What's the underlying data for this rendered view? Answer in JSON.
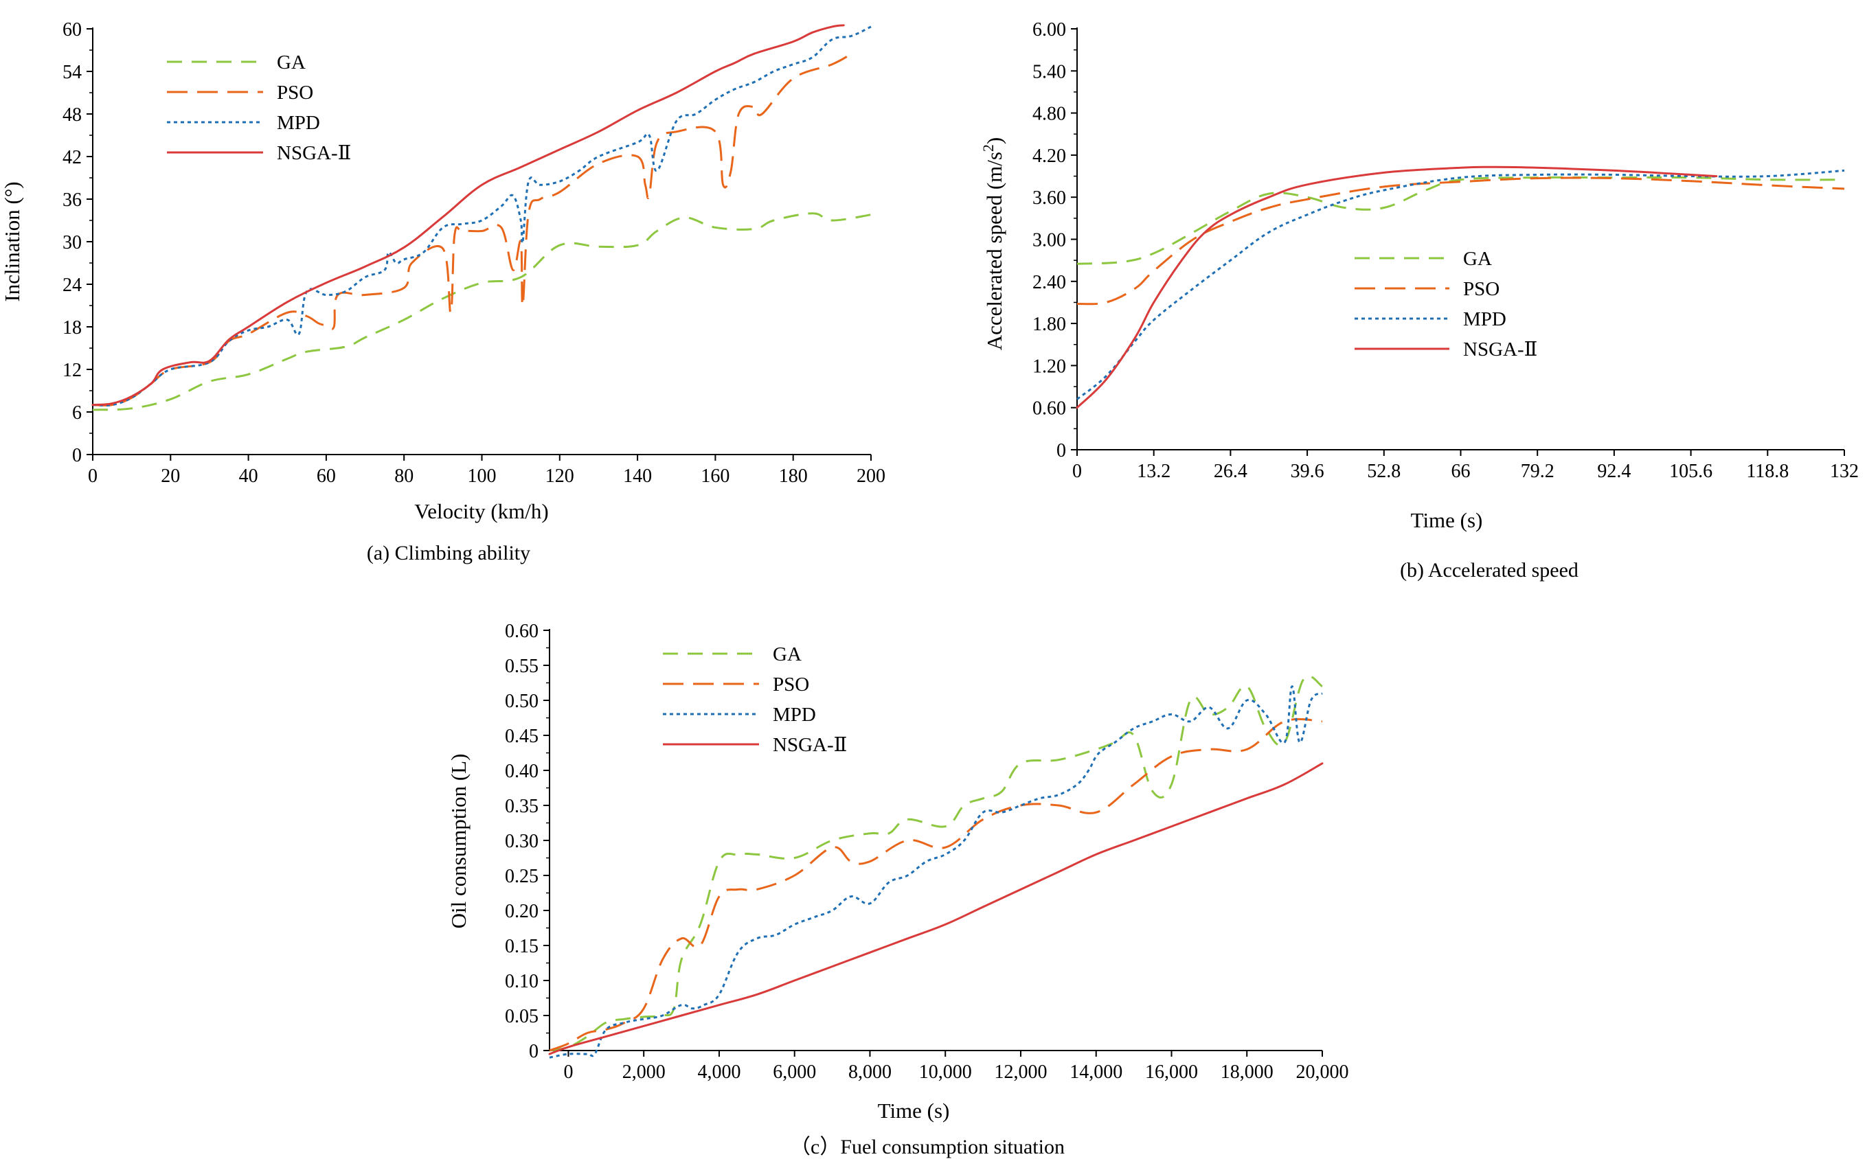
{
  "chart_data": [
    {
      "id": "a",
      "type": "line",
      "caption": "(a) Climbing ability",
      "xlabel": "Velocity (km/h)",
      "ylabel": "Inclination (°)",
      "xlim": [
        0,
        200
      ],
      "ylim": [
        0,
        60
      ],
      "xticks": [
        0,
        20,
        40,
        60,
        80,
        100,
        120,
        140,
        160,
        180,
        200
      ],
      "xtick_labels": [
        "0",
        "20",
        "40",
        "60",
        "80",
        "100",
        "120",
        "140",
        "160",
        "180",
        "200"
      ],
      "yticks": [
        0,
        6,
        12,
        18,
        24,
        30,
        36,
        42,
        48,
        54,
        60
      ],
      "ytick_labels": [
        "0",
        "6",
        "12",
        "18",
        "24",
        "30",
        "36",
        "42",
        "48",
        "54",
        "60"
      ],
      "legend_position": "top-left",
      "series": [
        {
          "name": "GA",
          "color": "#8dc63f",
          "dash": "dashed",
          "x": [
            0,
            10,
            20,
            30,
            40,
            50,
            55,
            65,
            70,
            80,
            90,
            100,
            110,
            120,
            130,
            140,
            145,
            152,
            160,
            170,
            175,
            185,
            190,
            200
          ],
          "y": [
            6.3,
            6.5,
            7.8,
            10.3,
            11.3,
            13.5,
            14.5,
            15.2,
            16.5,
            19,
            22,
            24.2,
            25,
            29.5,
            29.3,
            29.5,
            31.5,
            33.4,
            32,
            31.8,
            33,
            34,
            33,
            33.8
          ]
        },
        {
          "name": "PSO",
          "color": "#e8651a",
          "dash": "dashed-long",
          "x": [
            0,
            5,
            10,
            15,
            20,
            30,
            35,
            40,
            50,
            55,
            58,
            60,
            62,
            63,
            70,
            80,
            82,
            90,
            92,
            93,
            95,
            100,
            105,
            108,
            110,
            110.5,
            112,
            115,
            120,
            130,
            140,
            142,
            143,
            145,
            150,
            160,
            162,
            164,
            166,
            170,
            172,
            180,
            190,
            195
          ],
          "y": [
            7,
            7,
            8,
            10,
            12,
            13,
            16,
            17,
            20,
            19.5,
            18.5,
            18.2,
            18,
            22.5,
            22.5,
            23.5,
            27,
            29,
            20,
            31,
            31.5,
            31.5,
            32,
            26,
            30,
            21,
            34,
            36,
            37,
            41,
            42,
            38,
            36.5,
            44,
            45.5,
            45.5,
            38,
            40,
            48,
            49,
            48,
            53,
            55,
            56.5
          ]
        },
        {
          "name": "MPD",
          "color": "#1f6fb5",
          "dash": "dotted",
          "x": [
            0,
            5,
            10,
            15,
            20,
            30,
            35,
            40,
            45,
            50,
            53,
            55,
            60,
            65,
            70,
            75,
            76,
            78,
            80,
            85,
            90,
            95,
            100,
            105,
            108,
            110,
            110.5,
            112,
            115,
            120,
            125,
            130,
            140,
            143,
            145,
            150,
            155,
            160,
            165,
            170,
            175,
            180,
            185,
            190,
            195,
            200
          ],
          "y": [
            7,
            7,
            8,
            10,
            12,
            13,
            16,
            17.5,
            18,
            19,
            17,
            23,
            22.5,
            23,
            25,
            26,
            28.5,
            27,
            27.5,
            28.5,
            32,
            32.5,
            33,
            35,
            36.5,
            33,
            30,
            38.5,
            38,
            38.5,
            40,
            42,
            44,
            45,
            40,
            47,
            48,
            50,
            51.5,
            52.5,
            54,
            55,
            56,
            58.5,
            59,
            60.3
          ]
        },
        {
          "name": "NSGA-Ⅱ",
          "color": "#d93a3a",
          "dash": "solid",
          "x": [
            0,
            5,
            10,
            15,
            18,
            25,
            30,
            35,
            40,
            50,
            60,
            70,
            80,
            90,
            100,
            110,
            120,
            130,
            140,
            150,
            160,
            165,
            170,
            180,
            185,
            190,
            193
          ],
          "y": [
            7,
            7.2,
            8.2,
            10,
            12,
            13,
            13.2,
            16.2,
            18,
            21.5,
            24.2,
            26.5,
            29.2,
            33.5,
            38,
            40.5,
            43,
            45.5,
            48.5,
            51,
            54,
            55.2,
            56.5,
            58.2,
            59.5,
            60.3,
            60.5
          ]
        }
      ]
    },
    {
      "id": "b",
      "type": "line",
      "caption": "(b) Accelerated speed",
      "xlabel": "Time (s)",
      "ylabel": "Accelerated speed (m/s²)",
      "ylabel_main": "Accelerated speed (m/s",
      "ylabel_sup": "2",
      "ylabel_close": ")",
      "xlim": [
        0,
        132
      ],
      "ylim": [
        0,
        6
      ],
      "xticks": [
        0,
        13.2,
        26.4,
        39.6,
        52.8,
        66,
        79.2,
        92.4,
        105.6,
        118.8,
        132
      ],
      "xtick_labels": [
        "0",
        "13.2",
        "26.4",
        "39.6",
        "52.8",
        "66",
        "79.2",
        "92.4",
        "105.6",
        "118.8",
        "132"
      ],
      "yticks": [
        0,
        0.6,
        1.2,
        1.8,
        2.4,
        3.0,
        3.6,
        4.2,
        4.8,
        5.4,
        6.0
      ],
      "ytick_labels": [
        "0",
        "0.60",
        "1.20",
        "1.80",
        "2.40",
        "3.00",
        "3.60",
        "4.20",
        "4.80",
        "5.40",
        "6.00"
      ],
      "legend_position": "center",
      "series": [
        {
          "name": "GA",
          "color": "#8dc63f",
          "dash": "dashed",
          "x": [
            0,
            8,
            13.2,
            20,
            26.4,
            33,
            39.6,
            46,
            52.8,
            60,
            66,
            79.2,
            92.4,
            105.6,
            118.8,
            132
          ],
          "y": [
            2.65,
            2.68,
            2.8,
            3.1,
            3.4,
            3.65,
            3.6,
            3.45,
            3.45,
            3.7,
            3.85,
            3.88,
            3.88,
            3.88,
            3.85,
            3.85
          ]
        },
        {
          "name": "PSO",
          "color": "#e8651a",
          "dash": "dashed-long",
          "x": [
            0,
            5,
            10,
            13.2,
            20,
            26.4,
            33,
            39.6,
            52.8,
            66,
            79.2,
            92.4,
            105.6,
            118.8,
            132
          ],
          "y": [
            2.08,
            2.1,
            2.3,
            2.55,
            3.0,
            3.25,
            3.45,
            3.57,
            3.75,
            3.82,
            3.87,
            3.87,
            3.83,
            3.77,
            3.72
          ]
        },
        {
          "name": "MPD",
          "color": "#1f6fb5",
          "dash": "dotted",
          "x": [
            0,
            5,
            10,
            13.2,
            20,
            26.4,
            33,
            39.6,
            46,
            52.8,
            66,
            79.2,
            92.4,
            105.6,
            118.8,
            132
          ],
          "y": [
            0.72,
            1.05,
            1.55,
            1.85,
            2.3,
            2.7,
            3.1,
            3.35,
            3.55,
            3.7,
            3.88,
            3.92,
            3.92,
            3.9,
            3.9,
            3.98
          ]
        },
        {
          "name": "NSGA-Ⅱ",
          "color": "#d93a3a",
          "dash": "solid",
          "x": [
            0,
            5,
            10,
            13.2,
            18,
            22,
            26.4,
            33,
            39.6,
            52.8,
            66,
            72,
            79.2,
            92.4,
            105.6,
            110
          ],
          "y": [
            0.6,
            1.0,
            1.6,
            2.1,
            2.7,
            3.1,
            3.35,
            3.6,
            3.78,
            3.95,
            4.02,
            4.03,
            4.02,
            3.98,
            3.92,
            3.9
          ]
        }
      ]
    },
    {
      "id": "c",
      "type": "line",
      "caption": "（c）Fuel consumption situation",
      "xlabel": "Time (s)",
      "ylabel": "Oil consumption (L)",
      "xlim": [
        -500,
        20000
      ],
      "ylim": [
        0,
        0.6
      ],
      "xticks": [
        0,
        2000,
        4000,
        6000,
        8000,
        10000,
        12000,
        14000,
        16000,
        18000,
        20000
      ],
      "xtick_labels": [
        "0",
        "2,000",
        "4,000",
        "6,000",
        "8,000",
        "10,000",
        "12,000",
        "14,000",
        "16,000",
        "18,000",
        "20,000"
      ],
      "yticks": [
        0,
        0.05,
        0.1,
        0.15,
        0.2,
        0.25,
        0.3,
        0.35,
        0.4,
        0.45,
        0.5,
        0.55,
        0.6
      ],
      "ytick_labels": [
        "0",
        "0.05",
        "0.10",
        "0.15",
        "0.20",
        "0.25",
        "0.30",
        "0.35",
        "0.40",
        "0.45",
        "0.50",
        "0.55",
        "0.60"
      ],
      "legend_position": "top-left",
      "series": [
        {
          "name": "GA",
          "color": "#8dc63f",
          "dash": "dashed",
          "x": [
            -500,
            0,
            500,
            1000,
            1500,
            2000,
            2500,
            2800,
            3000,
            3500,
            4000,
            4500,
            5000,
            6000,
            7000,
            8000,
            8500,
            9000,
            10000,
            10500,
            11000,
            11500,
            12000,
            13000,
            14000,
            14500,
            15000,
            15500,
            16000,
            16500,
            17000,
            17500,
            18000,
            18500,
            19000,
            19500,
            20000
          ],
          "y": [
            0,
            0.005,
            0.02,
            0.04,
            0.045,
            0.048,
            0.05,
            0.06,
            0.13,
            0.18,
            0.27,
            0.28,
            0.28,
            0.275,
            0.3,
            0.31,
            0.31,
            0.33,
            0.32,
            0.35,
            0.36,
            0.37,
            0.41,
            0.415,
            0.43,
            0.44,
            0.45,
            0.37,
            0.38,
            0.5,
            0.48,
            0.49,
            0.52,
            0.46,
            0.44,
            0.53,
            0.52
          ]
        },
        {
          "name": "PSO",
          "color": "#e8651a",
          "dash": "dashed-long",
          "x": [
            -500,
            0,
            500,
            1000,
            1500,
            2000,
            2500,
            3000,
            3500,
            4000,
            4500,
            5000,
            6000,
            7000,
            7500,
            8000,
            9000,
            10000,
            11000,
            12000,
            13000,
            14000,
            15000,
            16000,
            17000,
            18000,
            19000,
            20000
          ],
          "y": [
            0,
            0.01,
            0.025,
            0.03,
            0.04,
            0.06,
            0.13,
            0.16,
            0.15,
            0.22,
            0.23,
            0.23,
            0.25,
            0.29,
            0.27,
            0.27,
            0.3,
            0.29,
            0.33,
            0.35,
            0.35,
            0.34,
            0.38,
            0.42,
            0.43,
            0.43,
            0.47,
            0.47
          ]
        },
        {
          "name": "MPD",
          "color": "#1f6fb5",
          "dash": "dotted",
          "x": [
            -500,
            0,
            500,
            700,
            1000,
            1500,
            2000,
            2500,
            3000,
            3300,
            3600,
            4000,
            4500,
            5000,
            5500,
            6000,
            6500,
            7000,
            7500,
            8000,
            8500,
            9000,
            9500,
            10000,
            10500,
            11000,
            11500,
            12000,
            12500,
            13000,
            13500,
            13800,
            14000,
            14200,
            14500,
            15000,
            15500,
            16000,
            16500,
            17000,
            17500,
            18000,
            18500,
            19000,
            19200,
            19400,
            19700,
            20000
          ],
          "y": [
            -0.01,
            -0.005,
            -0.005,
            -0.005,
            0.03,
            0.04,
            0.045,
            0.05,
            0.065,
            0.06,
            0.065,
            0.08,
            0.14,
            0.16,
            0.165,
            0.18,
            0.19,
            0.2,
            0.22,
            0.21,
            0.24,
            0.25,
            0.27,
            0.28,
            0.3,
            0.34,
            0.34,
            0.35,
            0.36,
            0.365,
            0.38,
            0.4,
            0.42,
            0.43,
            0.44,
            0.46,
            0.47,
            0.48,
            0.47,
            0.49,
            0.46,
            0.5,
            0.48,
            0.44,
            0.52,
            0.44,
            0.5,
            0.51
          ]
        },
        {
          "name": "NSGA-Ⅱ",
          "color": "#d93a3a",
          "dash": "solid",
          "x": [
            -500,
            0,
            1000,
            2000,
            3000,
            4000,
            5000,
            6000,
            7000,
            8000,
            9000,
            10000,
            11000,
            12000,
            13000,
            14000,
            15000,
            16000,
            17000,
            18000,
            19000,
            20000
          ],
          "y": [
            -0.005,
            0.005,
            0.02,
            0.035,
            0.05,
            0.065,
            0.08,
            0.1,
            0.12,
            0.14,
            0.16,
            0.18,
            0.205,
            0.23,
            0.255,
            0.28,
            0.3,
            0.32,
            0.34,
            0.36,
            0.38,
            0.41
          ]
        }
      ]
    }
  ]
}
